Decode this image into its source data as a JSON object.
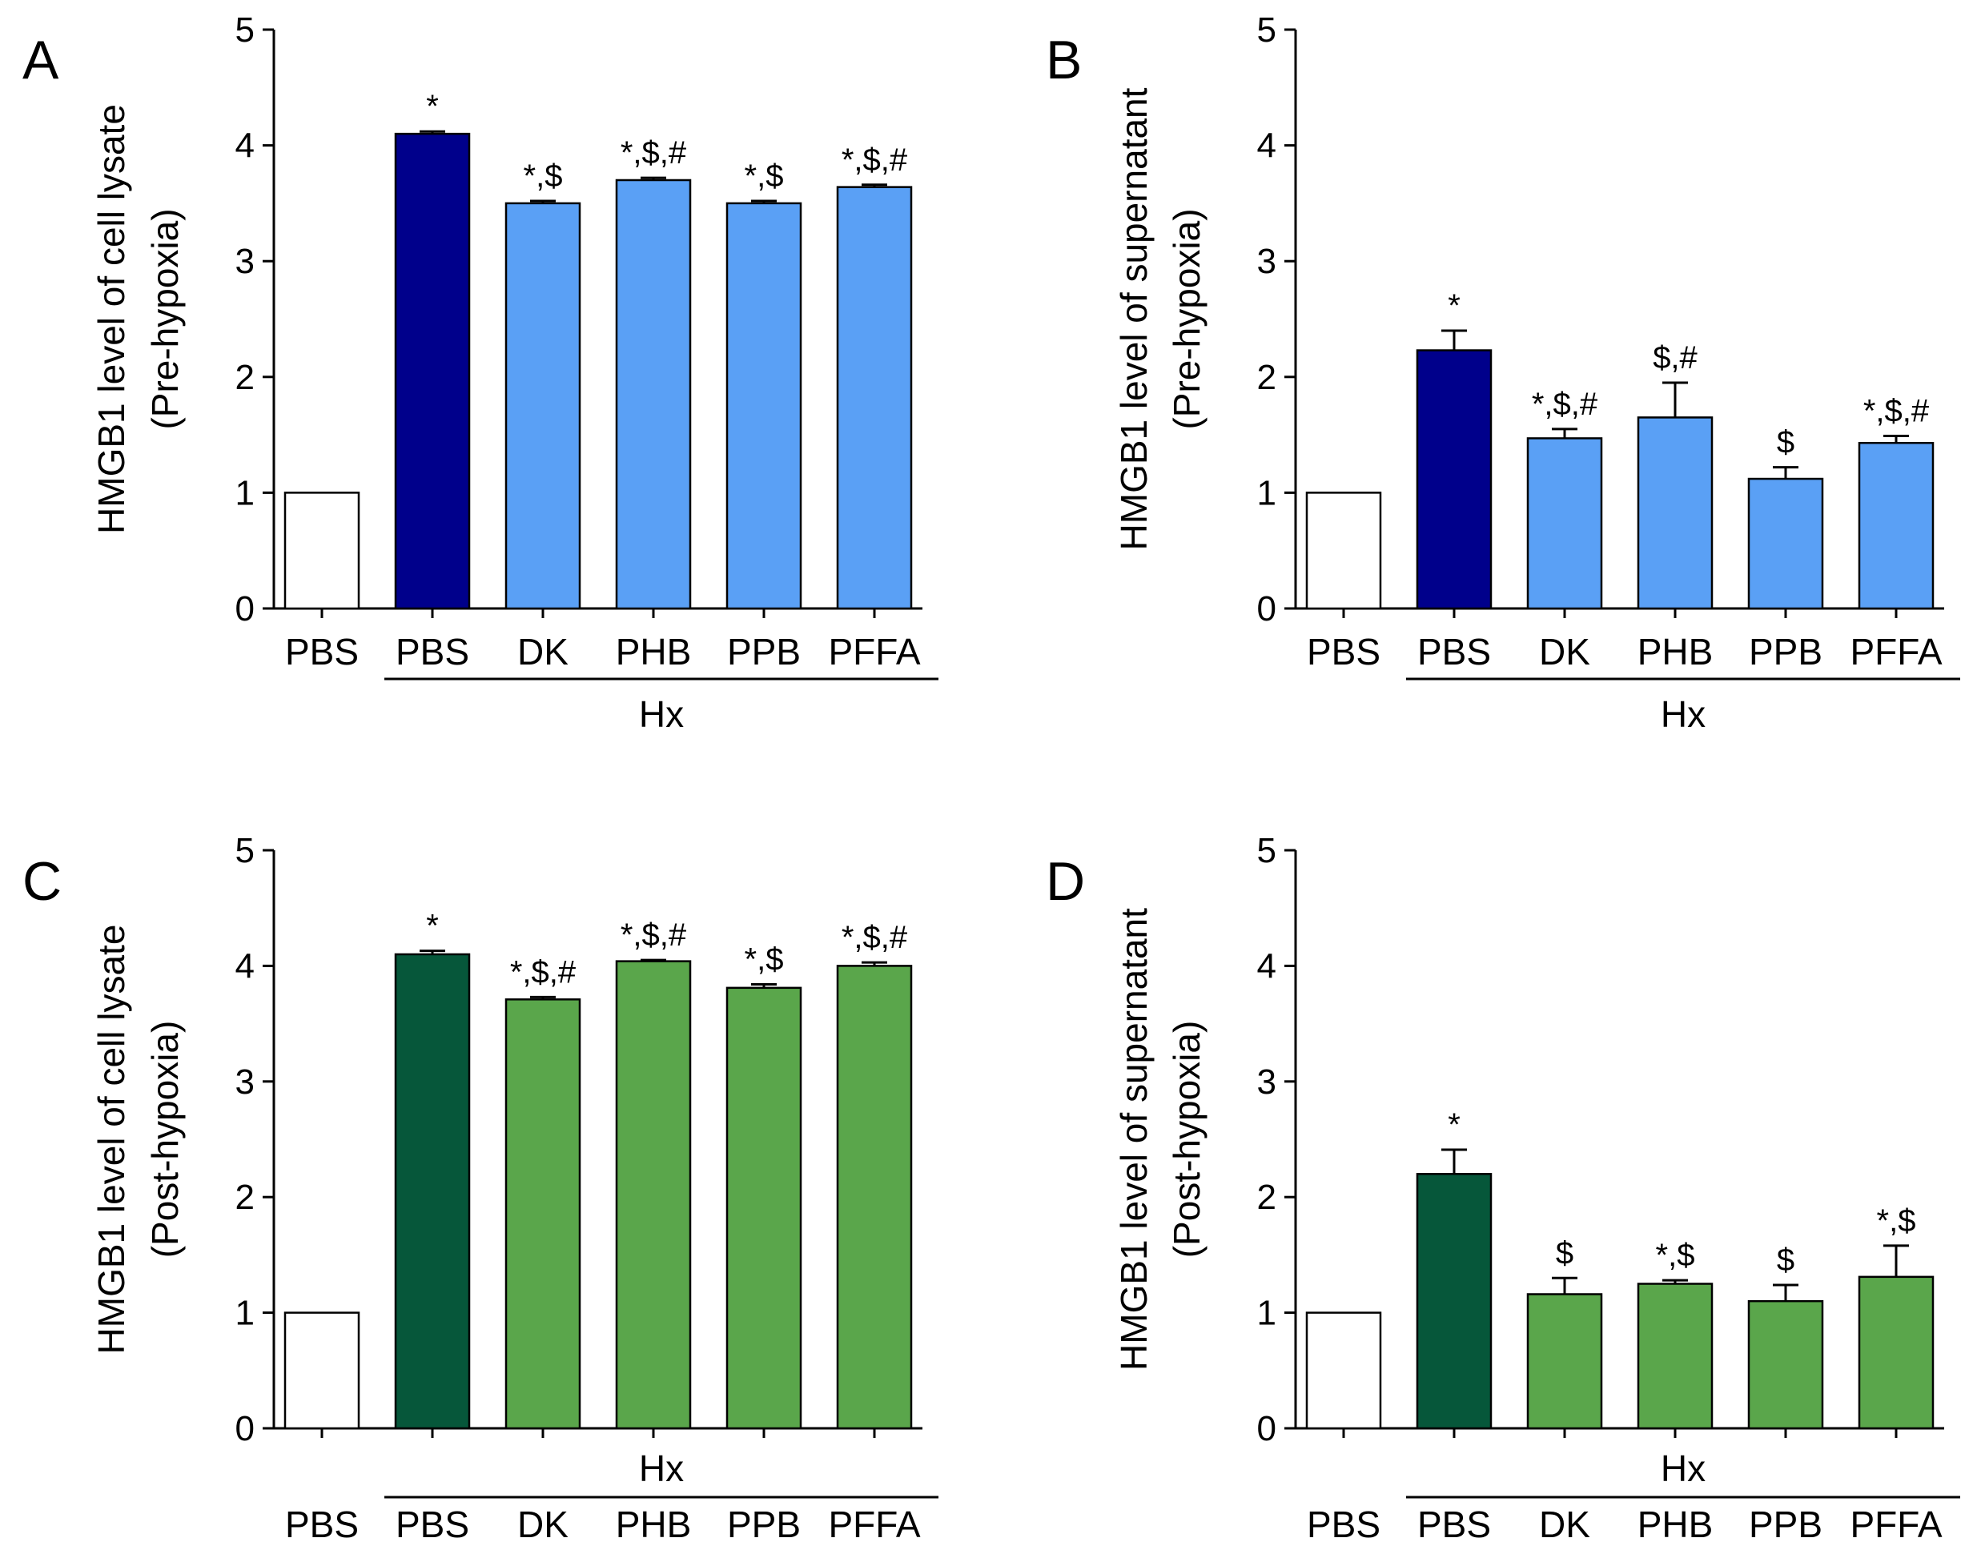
{
  "colors": {
    "control": "#ffffff",
    "blue_dark": "#00008b",
    "blue_light": "#5aa0f5",
    "green_dark": "#06573a",
    "green_light": "#5aa64b",
    "axis": "#000000"
  },
  "chart_data": [
    {
      "type": "bar",
      "panel": "A",
      "categories": [
        "PBS",
        "PBS",
        "DK",
        "PHB",
        "PPB",
        "PFFA"
      ],
      "values": [
        1.0,
        4.1,
        3.5,
        3.7,
        3.5,
        3.64
      ],
      "errors": [
        0,
        0.02,
        0.02,
        0.02,
        0.02,
        0.02
      ],
      "annotations": [
        "",
        "*",
        "*,$",
        "*,$,#",
        "*,$",
        "*,$,#"
      ],
      "bar_colors": [
        "control",
        "blue_dark",
        "blue_light",
        "blue_light",
        "blue_light",
        "blue_light"
      ],
      "group_label": "Hx",
      "ylabel": [
        "HMGB1 level of cell lysate",
        "(Pre-hypoxia)"
      ],
      "yticks": [
        0,
        1,
        2,
        3,
        4,
        5
      ],
      "ylim": [
        0,
        5
      ]
    },
    {
      "type": "bar",
      "panel": "B",
      "categories": [
        "PBS",
        "PBS",
        "DK",
        "PHB",
        "PPB",
        "PFFA"
      ],
      "values": [
        1.0,
        2.23,
        1.47,
        1.65,
        1.12,
        1.43
      ],
      "errors": [
        0,
        0.17,
        0.08,
        0.3,
        0.1,
        0.06
      ],
      "annotations": [
        "",
        "*",
        "*,$,#",
        "$,#",
        "$",
        "*,$,#"
      ],
      "bar_colors": [
        "control",
        "blue_dark",
        "blue_light",
        "blue_light",
        "blue_light",
        "blue_light"
      ],
      "group_label": "Hx",
      "ylabel": [
        "HMGB1 level of supernatant",
        "(Pre-hypoxia)"
      ],
      "yticks": [
        0,
        1,
        2,
        3,
        4,
        5
      ],
      "ylim": [
        0,
        5
      ]
    },
    {
      "type": "bar",
      "panel": "C",
      "categories": [
        "PBS",
        "PBS",
        "DK",
        "PHB",
        "PPB",
        "PFFA"
      ],
      "values": [
        1.0,
        4.1,
        3.71,
        4.04,
        3.81,
        4.0
      ],
      "errors": [
        0,
        0.03,
        0.02,
        0.01,
        0.03,
        0.03
      ],
      "annotations": [
        "",
        "*",
        "*,$,#",
        "*,$,#",
        "*,$",
        "*,$,#"
      ],
      "bar_colors": [
        "control",
        "green_dark",
        "green_light",
        "green_light",
        "green_light",
        "green_light"
      ],
      "group_label": "Hx",
      "ylabel": [
        "HMGB1 level of cell lysate",
        "(Post-hypoxia)"
      ],
      "yticks": [
        0,
        1,
        2,
        3,
        4,
        5
      ],
      "ylim": [
        0,
        5
      ]
    },
    {
      "type": "bar",
      "panel": "D",
      "categories": [
        "PBS",
        "PBS",
        "DK",
        "PHB",
        "PPB",
        "PFFA"
      ],
      "values": [
        1.0,
        2.2,
        1.16,
        1.25,
        1.1,
        1.31
      ],
      "errors": [
        0,
        0.21,
        0.14,
        0.03,
        0.14,
        0.27
      ],
      "annotations": [
        "",
        "*",
        "$",
        "*,$",
        "$",
        "*,$"
      ],
      "bar_colors": [
        "control",
        "green_dark",
        "green_light",
        "green_light",
        "green_light",
        "green_light"
      ],
      "group_label": "Hx",
      "ylabel": [
        "HMGB1 level of supernatant",
        "(Post-hypoxia)"
      ],
      "yticks": [
        0,
        1,
        2,
        3,
        4,
        5
      ],
      "ylim": [
        0,
        5
      ]
    }
  ]
}
